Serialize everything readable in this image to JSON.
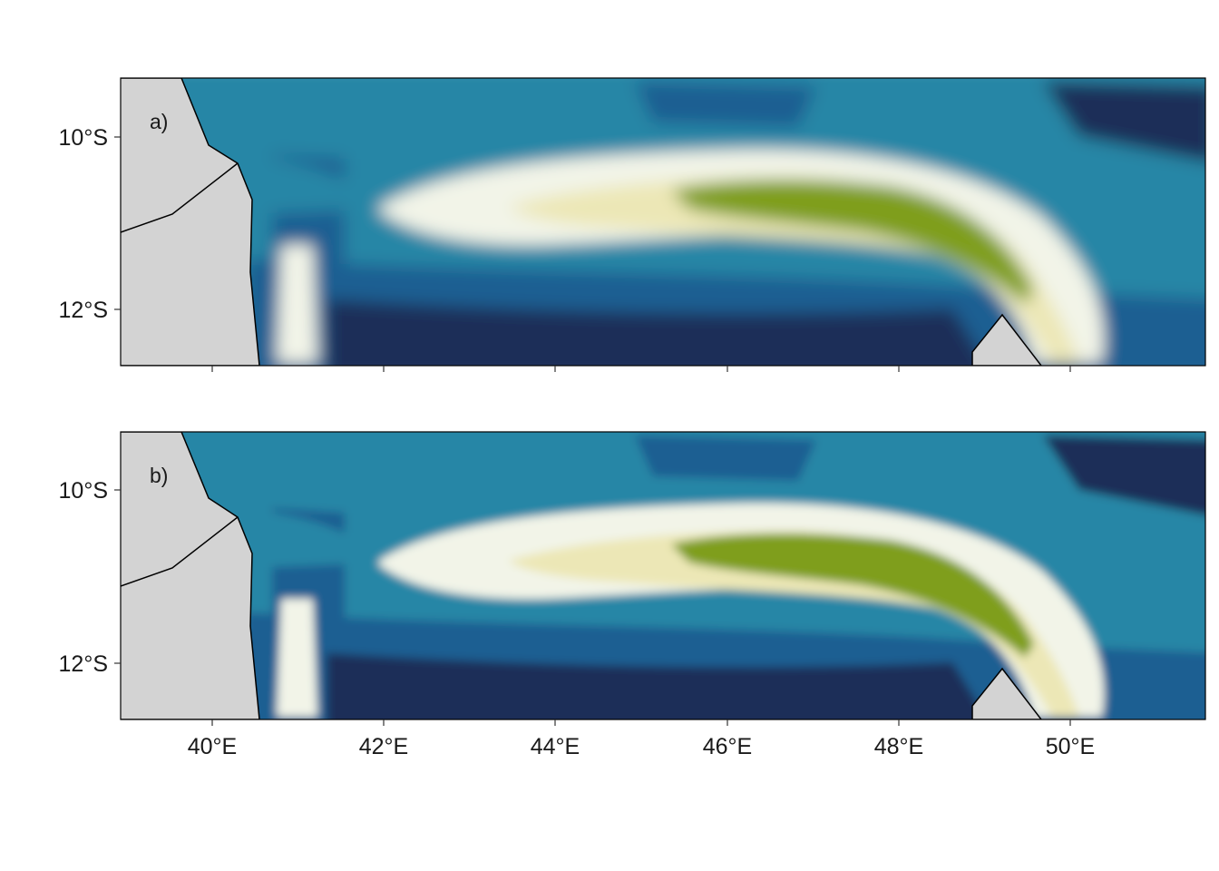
{
  "colors": {
    "deep": "#1b2e58",
    "mid": "#1f5f92",
    "teal": "#2786a6",
    "pale": "#f2f4e8",
    "sand": "#ece7b6",
    "olive": "#7f9e1a",
    "land": "#d3d3d3",
    "frame": "#000000"
  },
  "panels": [
    {
      "id": "a",
      "label": "a)"
    },
    {
      "id": "b",
      "label": "b)"
    }
  ],
  "axes": {
    "y_ticks": [
      {
        "value": -10,
        "label": "10°S"
      },
      {
        "value": -12,
        "label": "12°S"
      }
    ],
    "x_ticks": [
      {
        "value": 40,
        "label": "40°E"
      },
      {
        "value": 42,
        "label": "42°E"
      },
      {
        "value": 44,
        "label": "44°E"
      },
      {
        "value": 46,
        "label": "46°E"
      },
      {
        "value": 48,
        "label": "48°E"
      },
      {
        "value": 50,
        "label": "50°E"
      }
    ],
    "lon_range": [
      38.93,
      51.58
    ],
    "lat_range": [
      -12.65,
      -9.35
    ]
  }
}
